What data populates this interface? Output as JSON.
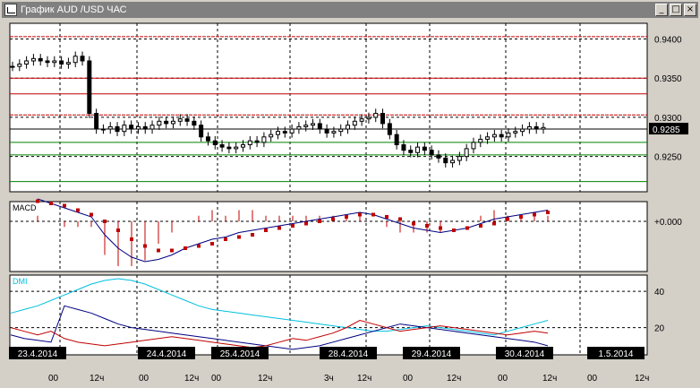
{
  "window": {
    "title": "График AUD /USD  ЧАС",
    "buttons": {
      "minimize": "_",
      "maximize": "□",
      "close": "×"
    }
  },
  "price_panel": {
    "yticks": [
      "0.9400",
      "0.9350",
      "0.9300",
      "0.9250"
    ],
    "current_price": "0.9285",
    "ymin": 0.9205,
    "ymax": 0.942
  },
  "macd_panel": {
    "label": "MACD",
    "zero_label": "+0.000"
  },
  "dmi_panel": {
    "label": "DMI",
    "yticks": [
      "40",
      "20"
    ]
  },
  "dates": [
    "23.4.2014",
    "24.4.2014",
    "25.4.2014",
    "28.4.2014",
    "29.4.2014",
    "30.4.2014",
    "1.5.2014"
  ],
  "time_ticks": [
    "00",
    "12ч",
    "00",
    "12ч",
    "00",
    "12ч",
    "3ч",
    "12ч",
    "00",
    "12ч",
    "00",
    "12ч",
    "00",
    "12ч"
  ],
  "colors": {
    "background": "#ffffff",
    "candles": "#000000",
    "support": "#008000",
    "resistance": "#c00000",
    "macd_line": "#000080",
    "macd_signal": "#c00000",
    "dmi_adx": "#00c0e0",
    "dmi_plus": "#000080",
    "dmi_minus": "#c00000",
    "date_label_bg": "#000000",
    "date_label_fg": "#ffffff"
  },
  "chart_data": {
    "type": "line",
    "price_levels": {
      "resistance": [
        0.9403,
        0.935,
        0.933,
        0.9303
      ],
      "support": [
        0.9268,
        0.9252,
        0.9218
      ],
      "current": 0.9285
    },
    "price_close": [
      0.9365,
      0.9368,
      0.9372,
      0.9375,
      0.9372,
      0.937,
      0.9372,
      0.9368,
      0.937,
      0.9378,
      0.9372,
      0.9305,
      0.9285,
      0.9285,
      0.9288,
      0.9282,
      0.929,
      0.9285,
      0.9288,
      0.9285,
      0.929,
      0.9295,
      0.9292,
      0.9295,
      0.9298,
      0.9295,
      0.929,
      0.9275,
      0.927,
      0.9265,
      0.9262,
      0.926,
      0.9262,
      0.9265,
      0.927,
      0.9268,
      0.9275,
      0.9278,
      0.9282,
      0.928,
      0.9285,
      0.9288,
      0.929,
      0.9292,
      0.9285,
      0.928,
      0.9282,
      0.9285,
      0.929,
      0.9295,
      0.9298,
      0.93,
      0.9305,
      0.9292,
      0.9278,
      0.9265,
      0.9258,
      0.9255,
      0.9262,
      0.9258,
      0.9252,
      0.9248,
      0.9242,
      0.9245,
      0.925,
      0.926,
      0.9268,
      0.9272,
      0.9275,
      0.9278,
      0.9275,
      0.928,
      0.9282,
      0.9285,
      0.9288,
      0.9285,
      0.9287
    ],
    "macd": [
      0.001,
      0.0008,
      0.0006,
      0.0004,
      0.0002,
      -0.0006,
      -0.0012,
      -0.0016,
      -0.0018,
      -0.0017,
      -0.0015,
      -0.0012,
      -0.001,
      -0.0008,
      -0.0007,
      -0.0005,
      -0.0004,
      -0.0003,
      -0.0002,
      -0.0001,
      0.0,
      0.0001,
      0.0002,
      0.0003,
      0.0004,
      0.0003,
      0.0001,
      -0.0001,
      -0.0003,
      -0.0004,
      -0.0005,
      -0.0004,
      -0.0003,
      -0.0001,
      0.0001,
      0.0002,
      0.0003,
      0.0004,
      0.0005
    ],
    "macd_signal": [
      0.0009,
      0.0008,
      0.0007,
      0.0005,
      0.0003,
      0.0,
      -0.0004,
      -0.0008,
      -0.0011,
      -0.0013,
      -0.0013,
      -0.0012,
      -0.0011,
      -0.001,
      -0.0008,
      -0.0007,
      -0.0006,
      -0.0004,
      -0.0003,
      -0.0002,
      -0.0001,
      0.0,
      0.0001,
      0.0002,
      0.0003,
      0.0003,
      0.0002,
      0.0001,
      -0.0001,
      -0.0002,
      -0.0003,
      -0.0004,
      -0.0003,
      -0.0002,
      -0.0001,
      0.0001,
      0.0002,
      0.0003,
      0.0004
    ],
    "dmi_adx": [
      28,
      30,
      32,
      35,
      38,
      41,
      44,
      46,
      47,
      46,
      44,
      41,
      38,
      35,
      32,
      30,
      29,
      28,
      27,
      26,
      25,
      24,
      23,
      22,
      21,
      20,
      19,
      18,
      18,
      19,
      20,
      21,
      20,
      19,
      18,
      17,
      16,
      18,
      20,
      22,
      24
    ],
    "dmi_plus": [
      16,
      14,
      13,
      12,
      32,
      30,
      28,
      25,
      22,
      20,
      19,
      18,
      17,
      16,
      15,
      14,
      13,
      12,
      11,
      10,
      9,
      8,
      9,
      10,
      12,
      14,
      16,
      18,
      20,
      22,
      21,
      20,
      19,
      18,
      17,
      16,
      15,
      14,
      13,
      12,
      10
    ],
    "dmi_minus": [
      20,
      18,
      16,
      18,
      14,
      12,
      11,
      10,
      11,
      12,
      13,
      14,
      15,
      14,
      13,
      12,
      11,
      10,
      9,
      10,
      12,
      14,
      13,
      15,
      17,
      20,
      24,
      22,
      20,
      18,
      19,
      20,
      21,
      20,
      19,
      18,
      17,
      16,
      17,
      18,
      17
    ]
  }
}
